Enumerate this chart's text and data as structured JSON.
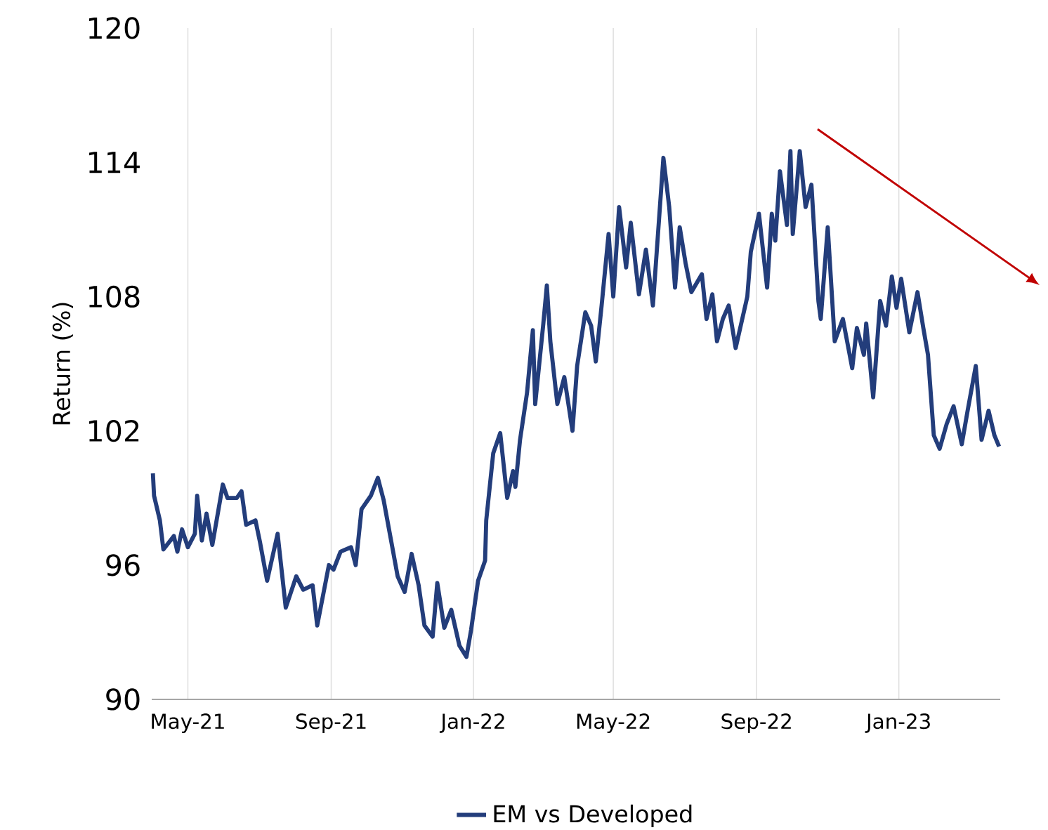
{
  "chart_data": {
    "type": "line",
    "ylabel": "Return (%)",
    "x": [
      "2021-04-01",
      "2021-04-02",
      "2021-04-07",
      "2021-04-10",
      "2021-04-19",
      "2021-04-22",
      "2021-04-26",
      "2021-05-01",
      "2021-05-07",
      "2021-05-09",
      "2021-05-13",
      "2021-05-17",
      "2021-05-22",
      "2021-05-31",
      "2021-06-04",
      "2021-06-12",
      "2021-06-16",
      "2021-06-20",
      "2021-06-28",
      "2021-07-02",
      "2021-07-08",
      "2021-07-17",
      "2021-07-24",
      "2021-08-02",
      "2021-08-08",
      "2021-08-16",
      "2021-08-20",
      "2021-08-30",
      "2021-09-03",
      "2021-09-09",
      "2021-09-18",
      "2021-09-22",
      "2021-09-27",
      "2021-10-05",
      "2021-10-11",
      "2021-10-16",
      "2021-10-22",
      "2021-10-28",
      "2021-11-03",
      "2021-11-09",
      "2021-11-15",
      "2021-11-20",
      "2021-11-27",
      "2021-12-01",
      "2021-12-07",
      "2021-12-13",
      "2021-12-20",
      "2021-12-26",
      "2021-12-30",
      "2022-01-05",
      "2022-01-11",
      "2022-01-12",
      "2022-01-18",
      "2022-01-24",
      "2022-01-30",
      "2022-02-04",
      "2022-02-06",
      "2022-02-10",
      "2022-02-16",
      "2022-02-21",
      "2022-02-23",
      "2022-03-02",
      "2022-03-05",
      "2022-03-08",
      "2022-03-14",
      "2022-03-20",
      "2022-03-27",
      "2022-03-31",
      "2022-04-07",
      "2022-04-12",
      "2022-04-16",
      "2022-04-21",
      "2022-04-27",
      "2022-05-01",
      "2022-05-06",
      "2022-05-12",
      "2022-05-16",
      "2022-05-23",
      "2022-05-29",
      "2022-06-04",
      "2022-06-13",
      "2022-06-18",
      "2022-06-23",
      "2022-06-27",
      "2022-07-02",
      "2022-07-07",
      "2022-07-16",
      "2022-07-20",
      "2022-07-25",
      "2022-07-29",
      "2022-08-03",
      "2022-08-08",
      "2022-08-14",
      "2022-08-24",
      "2022-08-27",
      "2022-09-03",
      "2022-09-10",
      "2022-09-14",
      "2022-09-17",
      "2022-09-21",
      "2022-09-27",
      "2022-09-30",
      "2022-10-02",
      "2022-10-08",
      "2022-10-13",
      "2022-10-18",
      "2022-10-24",
      "2022-10-26",
      "2022-11-01",
      "2022-11-07",
      "2022-11-14",
      "2022-11-22",
      "2022-11-26",
      "2022-12-02",
      "2022-12-04",
      "2022-12-10",
      "2022-12-16",
      "2022-12-21",
      "2022-12-26",
      "2022-12-30",
      "2023-01-03",
      "2023-01-10",
      "2023-01-17",
      "2023-01-22",
      "2023-01-26",
      "2023-01-31",
      "2023-02-05",
      "2023-02-11",
      "2023-02-17",
      "2023-02-24",
      "2023-03-01",
      "2023-03-08",
      "2023-03-13",
      "2023-03-19",
      "2023-03-24",
      "2023-03-28"
    ],
    "series": [
      {
        "name": "EM vs Developed",
        "color": "#233d7b",
        "values": [
          100.1,
          99.1,
          98.0,
          96.7,
          97.3,
          96.6,
          97.6,
          96.8,
          97.4,
          99.1,
          97.1,
          98.3,
          96.9,
          99.6,
          99.0,
          99.0,
          99.3,
          97.8,
          98.0,
          97.0,
          95.3,
          97.4,
          94.1,
          95.5,
          94.9,
          95.1,
          93.3,
          96.0,
          95.8,
          96.6,
          96.8,
          96.0,
          98.5,
          99.1,
          99.9,
          98.9,
          97.2,
          95.5,
          94.8,
          96.5,
          95.1,
          93.3,
          92.8,
          95.2,
          93.2,
          94.0,
          92.4,
          91.9,
          93.1,
          95.3,
          96.2,
          98.0,
          101.0,
          101.9,
          99.0,
          100.2,
          99.5,
          101.6,
          103.7,
          106.5,
          103.2,
          106.8,
          108.5,
          106.0,
          103.2,
          104.4,
          102.0,
          104.9,
          107.3,
          106.7,
          105.1,
          107.6,
          110.8,
          108.0,
          112.0,
          109.3,
          111.3,
          108.1,
          110.1,
          107.6,
          114.2,
          112.0,
          108.4,
          111.1,
          109.5,
          108.2,
          109.0,
          107.0,
          108.1,
          106.0,
          107.0,
          107.6,
          105.7,
          108.0,
          110.0,
          111.7,
          108.4,
          111.7,
          110.5,
          113.6,
          111.2,
          114.5,
          110.8,
          114.5,
          112.0,
          113.0,
          107.8,
          107.0,
          111.1,
          106.0,
          107.0,
          104.8,
          106.6,
          105.4,
          106.8,
          103.5,
          107.8,
          106.7,
          108.9,
          107.5,
          108.8,
          106.4,
          108.2,
          106.6,
          105.4,
          101.8,
          101.2,
          102.3,
          103.1,
          101.4,
          102.9,
          104.9,
          101.6,
          102.9,
          101.8,
          101.3
        ]
      }
    ],
    "xlim": [
      "2021-03-31",
      "2023-03-29"
    ],
    "xticks": [
      {
        "value": "2021-05-01",
        "label": "May-21"
      },
      {
        "value": "2021-09-01",
        "label": "Sep-21"
      },
      {
        "value": "2022-01-01",
        "label": "Jan-22"
      },
      {
        "value": "2022-05-01",
        "label": "May-22"
      },
      {
        "value": "2022-09-01",
        "label": "Sep-22"
      },
      {
        "value": "2023-01-01",
        "label": "Jan-23"
      }
    ],
    "ylim": [
      90,
      120
    ],
    "yticks": [
      90,
      96,
      102,
      108,
      114,
      120
    ],
    "grid": "x",
    "legend": "bottom",
    "line_style": "solid"
  }
}
